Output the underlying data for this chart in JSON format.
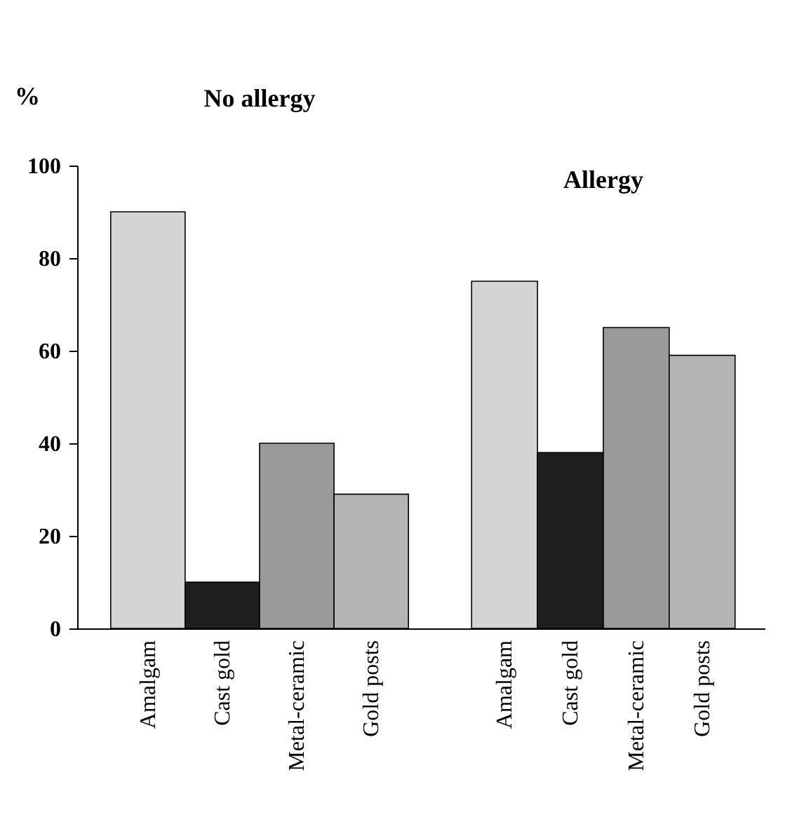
{
  "chart_data": [
    {
      "type": "bar",
      "title": "No allergy",
      "ylabel": "%",
      "categories": [
        "Amalgam",
        "Cast gold",
        "Metal-ceramic",
        "Gold posts"
      ],
      "values": [
        90,
        10,
        40,
        29
      ],
      "colors": [
        "#d4d4d4",
        "#1e1e1e",
        "#9a9a9a",
        "#b4b4b4"
      ],
      "ylim": [
        0,
        100
      ],
      "yticks": [
        0,
        20,
        40,
        60,
        80,
        100
      ],
      "grid": false,
      "legend": false
    },
    {
      "type": "bar",
      "title": "Allergy",
      "categories": [
        "Amalgam",
        "Cast gold",
        "Metal-ceramic",
        "Gold posts"
      ],
      "values": [
        75,
        38,
        65,
        59
      ],
      "colors": [
        "#d4d4d4",
        "#1e1e1e",
        "#9a9a9a",
        "#b4b4b4"
      ],
      "ylim": [
        0,
        100
      ],
      "yticks": [
        0,
        20,
        40,
        60,
        80,
        100
      ],
      "grid": false,
      "legend": false,
      "tick_labels": "x"
    }
  ]
}
